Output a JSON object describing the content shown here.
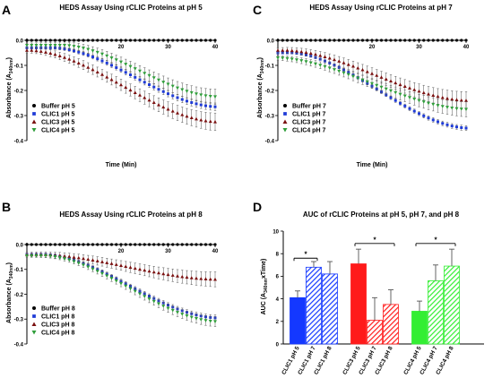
{
  "colors": {
    "buffer": "#000000",
    "clic1": "#1f3bd6",
    "clic3": "#7a1010",
    "clic4": "#2f9e3a",
    "bar_clic1": "#1438ff",
    "bar_clic3": "#ff1a1a",
    "bar_clic4": "#33ee33",
    "error": "#555555",
    "sig": "#000000"
  },
  "chart_data": [
    {
      "panel": "A",
      "type": "scatter",
      "title": "HEDS Assay Using rCLIC Proteins at pH 5",
      "xlabel": "Time (Min)",
      "ylabel": "Absorbance (A340nm)",
      "ylabel_main": "Absorbance (A",
      "ylabel_sub": "340nm",
      "ylabel_end": ")",
      "xlim": [
        0,
        40
      ],
      "ylim": [
        -0.4,
        0.0
      ],
      "xticks": [
        "20",
        "30",
        "40"
      ],
      "yticks": [
        "0.0",
        "-0.1",
        "-0.2",
        "-0.3",
        "-0.4"
      ],
      "legend_position": "lower-left",
      "series": [
        {
          "name": "Buffer pH 5",
          "key": "buffer",
          "marker": "circle",
          "y0": 0.0,
          "y1": 0.0,
          "err": 0.0,
          "delay": 0
        },
        {
          "name": "CLIC1 pH 5",
          "key": "clic1",
          "marker": "square",
          "y0": -0.03,
          "y1": -0.265,
          "err": 0.015,
          "delay": 6
        },
        {
          "name": "CLIC3 pH 5",
          "key": "clic3",
          "marker": "triangle-up",
          "y0": -0.04,
          "y1": -0.325,
          "err": 0.035,
          "delay": 1
        },
        {
          "name": "CLIC4 pH 5",
          "key": "clic4",
          "marker": "triangle-down",
          "y0": -0.02,
          "y1": -0.225,
          "err": 0.03,
          "delay": 8
        }
      ]
    },
    {
      "panel": "C",
      "type": "scatter",
      "title": "HEDS Assay Using rCLIC Proteins at pH 7",
      "xlabel": "Time (Min)",
      "ylabel": "Absorbance (A340nm)",
      "ylabel_main": "Absorbance (A",
      "ylabel_sub": "340nm",
      "ylabel_end": ")",
      "xlim": [
        0,
        40
      ],
      "ylim": [
        -0.4,
        0.0
      ],
      "xticks": [
        "20",
        "30",
        "40"
      ],
      "yticks": [
        "0.0",
        "-0.1",
        "-0.2",
        "-0.3",
        "-0.4"
      ],
      "legend_position": "lower-left",
      "series": [
        {
          "name": "Buffer pH 7",
          "key": "buffer",
          "marker": "circle",
          "y0": 0.0,
          "y1": 0.0,
          "err": 0.0,
          "delay": 0
        },
        {
          "name": "CLIC1 pH 7",
          "key": "clic1",
          "marker": "square",
          "y0": -0.05,
          "y1": -0.35,
          "err": 0.01,
          "delay": 3
        },
        {
          "name": "CLIC3 pH 7",
          "key": "clic3",
          "marker": "triangle-up",
          "y0": -0.04,
          "y1": -0.24,
          "err": 0.035,
          "delay": 2
        },
        {
          "name": "CLIC4 pH 7",
          "key": "clic4",
          "marker": "triangle-down",
          "y0": -0.07,
          "y1": -0.275,
          "err": 0.03,
          "delay": 0
        }
      ]
    },
    {
      "panel": "B",
      "type": "scatter",
      "title": "HEDS Assay Using rCLIC Proteins at pH 8",
      "xlabel": "Time (Min)",
      "ylabel": "Absorbance (A340nm)",
      "ylabel_main": "Absorbance (A",
      "ylabel_sub": "340nm",
      "ylabel_end": ")",
      "xlim": [
        0,
        40
      ],
      "ylim": [
        -0.4,
        0.0
      ],
      "xticks": [
        "20",
        "30",
        "40"
      ],
      "yticks": [
        "0.0",
        "-0.1",
        "-0.2",
        "-0.3",
        "-0.4"
      ],
      "legend_position": "lower-left",
      "series": [
        {
          "name": "Buffer pH 8",
          "key": "buffer",
          "marker": "circle",
          "y0": 0.0,
          "y1": 0.0,
          "err": 0.0,
          "delay": 0
        },
        {
          "name": "CLIC1 pH 8",
          "key": "clic1",
          "marker": "square",
          "y0": -0.04,
          "y1": -0.295,
          "err": 0.012,
          "delay": 4
        },
        {
          "name": "CLIC3 pH 8",
          "key": "clic3",
          "marker": "triangle-up",
          "y0": -0.04,
          "y1": -0.14,
          "err": 0.03,
          "delay": 3
        },
        {
          "name": "CLIC4 pH 8",
          "key": "clic4",
          "marker": "triangle-down",
          "y0": -0.045,
          "y1": -0.31,
          "err": 0.02,
          "delay": 4
        }
      ]
    },
    {
      "panel": "D",
      "type": "bar",
      "title": "AUC of rCLIC Proteins at pH 5, pH 7, and pH 8",
      "ylabel": "AUC (A340nm x Time)",
      "ylabel_main": "AUC (A",
      "ylabel_sub": "340nm",
      "ylabel_end": "xTime)",
      "ylim": [
        0,
        10
      ],
      "yticks": [
        "0",
        "2",
        "4",
        "6",
        "8",
        "10"
      ],
      "categories": [
        "CLIC1 pH 5",
        "CLIC1 pH 7",
        "CLIC1 pH 8",
        "CLIC3 pH 5",
        "CLIC3 pH 7",
        "CLIC3 pH 8",
        "CLIC4 pH 5",
        "CLIC4 pH 7",
        "CLIC4 pH 8"
      ],
      "values": [
        4.1,
        6.8,
        6.2,
        7.1,
        2.1,
        3.5,
        2.9,
        5.6,
        6.9
      ],
      "errors": [
        0.6,
        0.5,
        1.1,
        1.3,
        2.0,
        1.3,
        0.9,
        1.4,
        1.5
      ],
      "groups": [
        "clic1",
        "clic1",
        "clic1",
        "clic3",
        "clic3",
        "clic3",
        "clic4",
        "clic4",
        "clic4"
      ],
      "fills": [
        "solid",
        "hatch",
        "hatch",
        "solid",
        "hatch",
        "hatch",
        "solid",
        "hatch",
        "hatch"
      ],
      "significance": [
        {
          "from": 0,
          "to": 1,
          "y": 7.6,
          "label": "*"
        },
        {
          "from": 3,
          "to": 5,
          "y": 8.9,
          "label": "*"
        },
        {
          "from": 6,
          "to": 8,
          "y": 8.9,
          "label": "*"
        }
      ]
    }
  ]
}
